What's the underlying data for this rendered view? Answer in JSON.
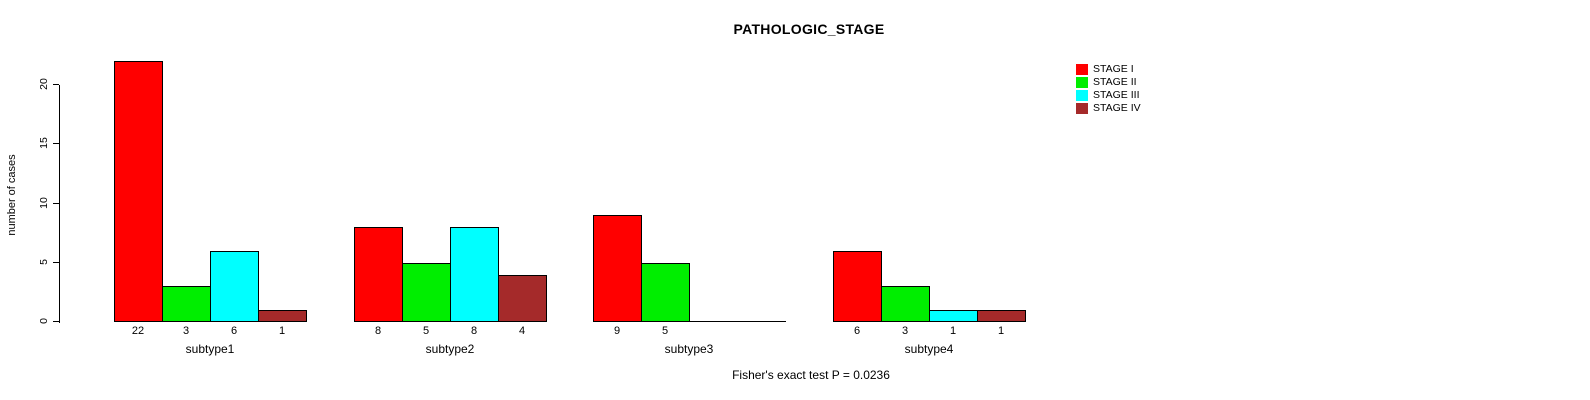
{
  "chart_data": {
    "type": "bar",
    "title": "PATHOLOGIC_STAGE",
    "ylabel": "number of cases",
    "xlabel": "",
    "yticks": [
      0,
      5,
      10,
      15,
      20
    ],
    "ylim": [
      0,
      20
    ],
    "grid": false,
    "legend_position": "top-right",
    "categories": [
      "subtype1",
      "subtype2",
      "subtype3",
      "subtype4"
    ],
    "series": [
      {
        "name": "STAGE I",
        "color": "#FF0000",
        "values": [
          22,
          8,
          9,
          6
        ]
      },
      {
        "name": "STAGE II",
        "color": "#00EE00",
        "values": [
          3,
          5,
          5,
          3
        ]
      },
      {
        "name": "STAGE III",
        "color": "#00FFFF",
        "values": [
          6,
          8,
          0,
          1
        ]
      },
      {
        "name": "STAGE IV",
        "color": "#A52A2A",
        "values": [
          1,
          4,
          0,
          1
        ]
      }
    ],
    "annotation": "Fisher's exact test P = 0.0236"
  }
}
